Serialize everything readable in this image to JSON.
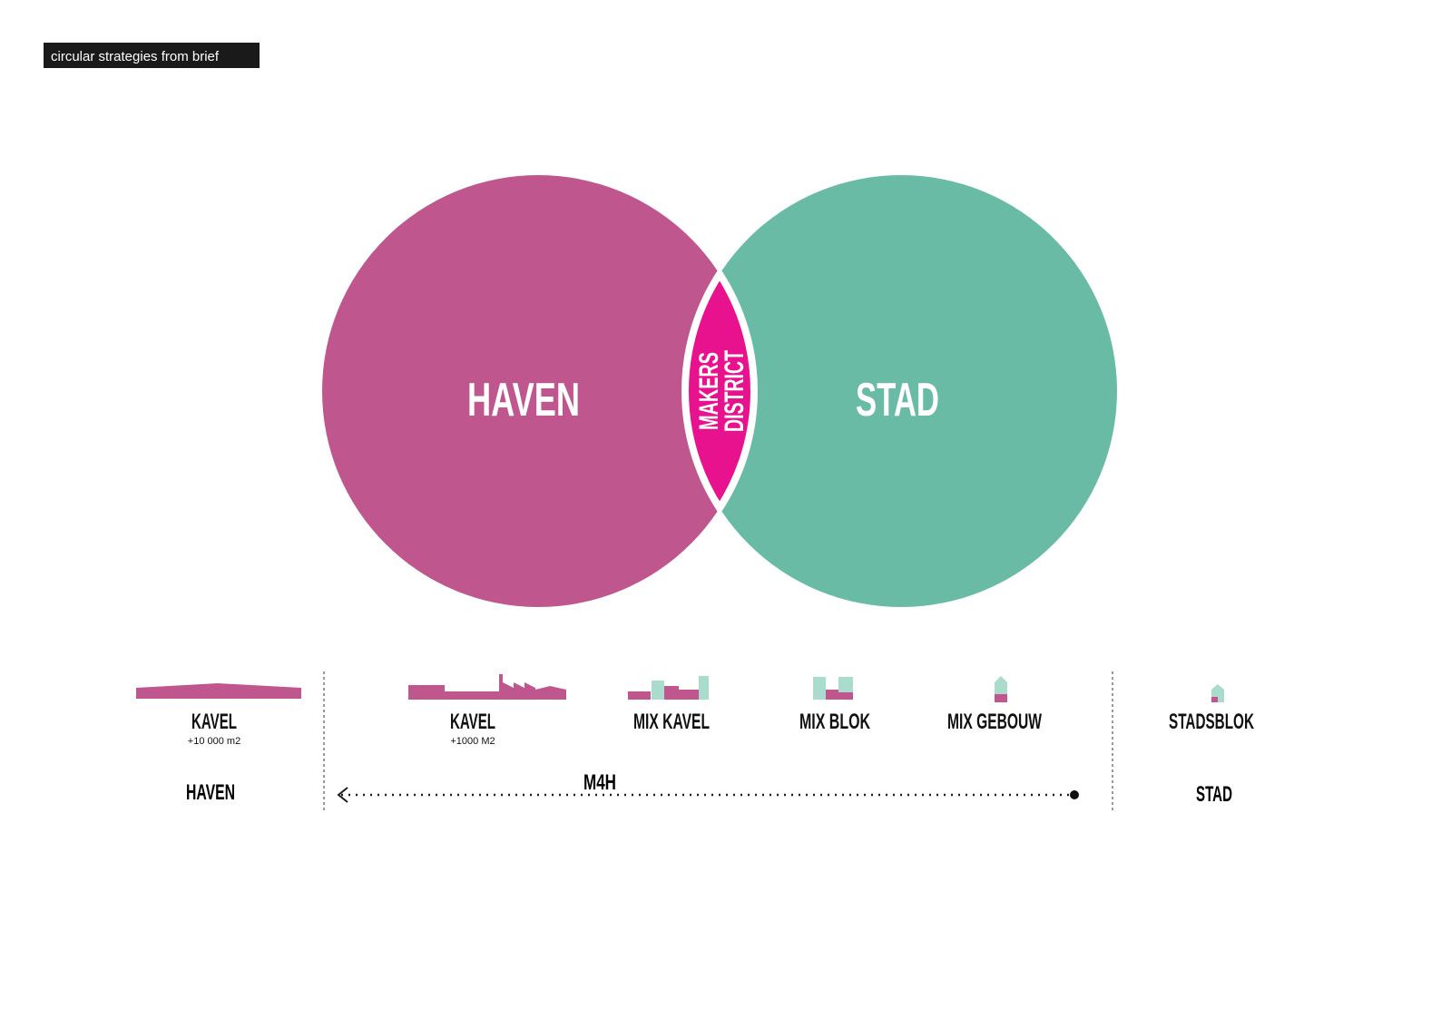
{
  "header": {
    "title": "circular strategies from brief"
  },
  "venn": {
    "left": {
      "label": "HAVEN"
    },
    "right": {
      "label": "STAD"
    },
    "overlap": {
      "lines": [
        "MAKERS",
        "DISTRICT"
      ]
    }
  },
  "scale": {
    "items": [
      {
        "label": "KAVEL",
        "sublabel": "+10 000 m2"
      },
      {
        "label": "KAVEL",
        "sublabel": "+1000 M2"
      },
      {
        "label": "MIX KAVEL"
      },
      {
        "label": "MIX BLOK"
      },
      {
        "label": "MIX GEBOUW"
      },
      {
        "label": "STADSBLOK"
      }
    ],
    "left_end": "HAVEN",
    "middle": "M4H",
    "right_end": "STAD"
  }
}
